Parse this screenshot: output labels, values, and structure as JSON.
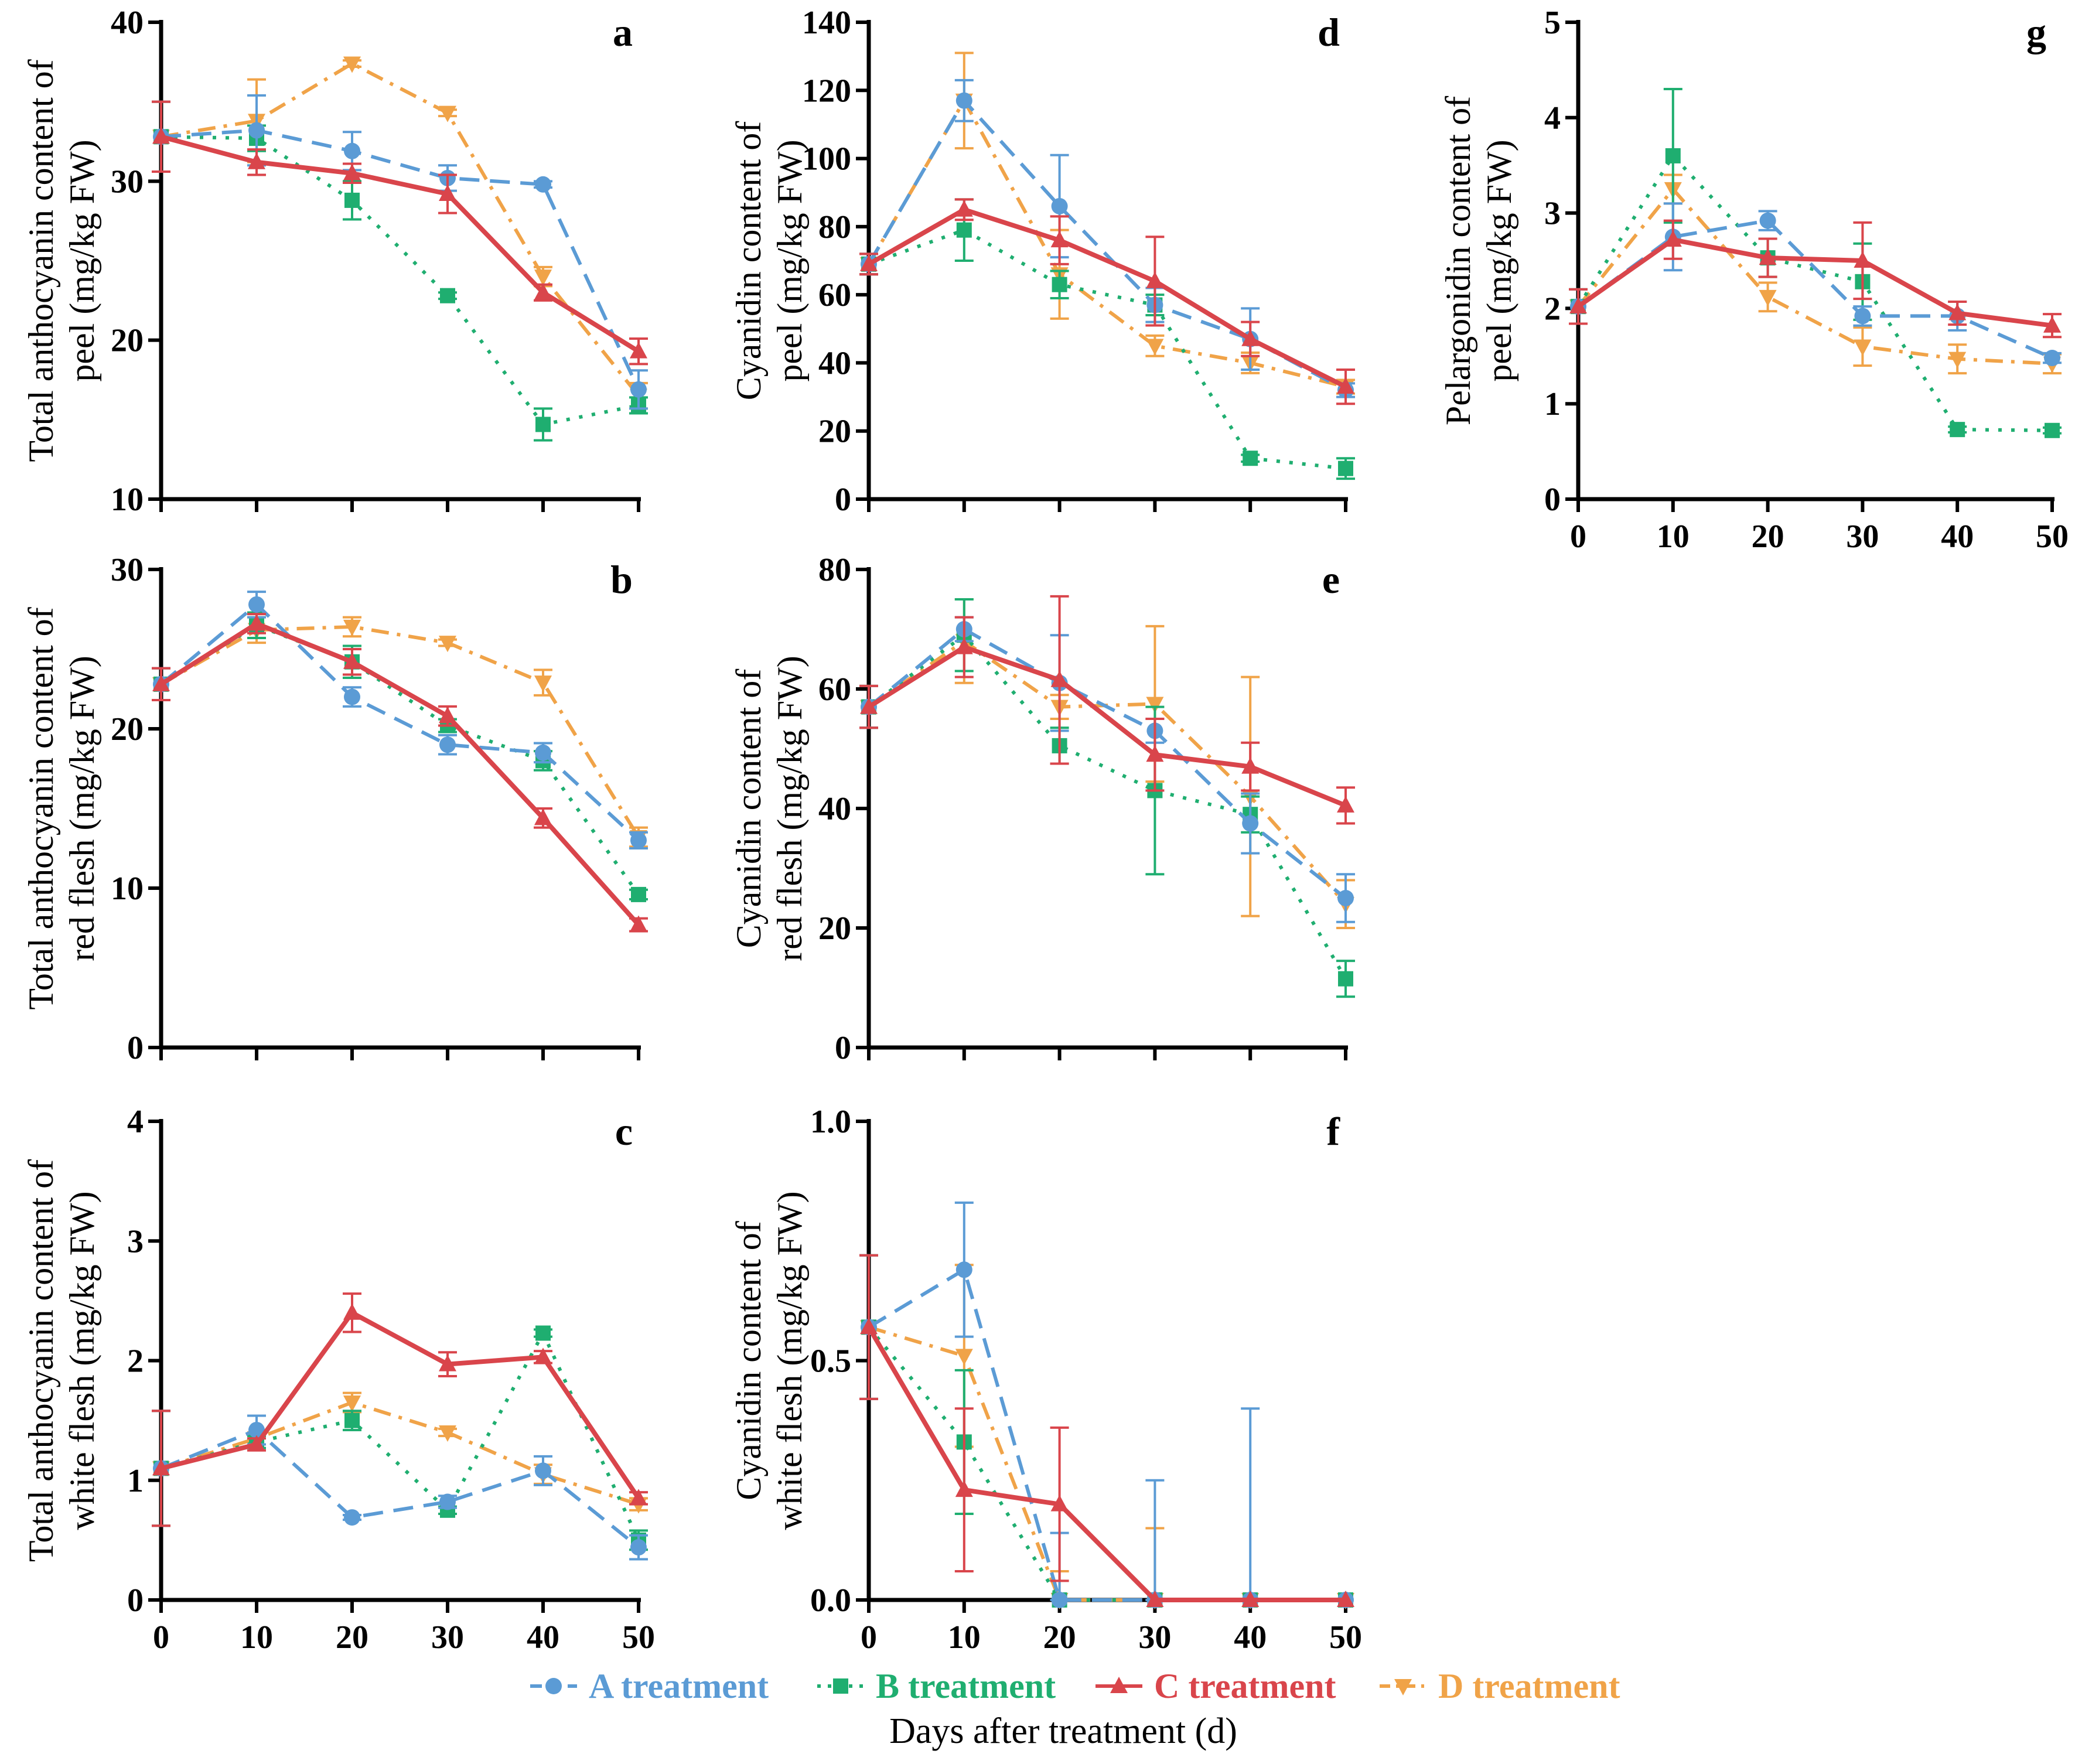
{
  "series_colors": {
    "A": "#5b9bd5",
    "B": "#1fae70",
    "C": "#d9454b",
    "D": "#f0a348"
  },
  "legend": [
    {
      "key": "A",
      "label": "A treatment",
      "marker": "circle",
      "dash": "dashed"
    },
    {
      "key": "B",
      "label": "B treatment",
      "marker": "square",
      "dash": "dotted"
    },
    {
      "key": "C",
      "label": "C treatment",
      "marker": "triangle-up",
      "dash": "solid"
    },
    {
      "key": "D",
      "label": "D treatment",
      "marker": "triangle-down",
      "dash": "dashdot"
    }
  ],
  "xaxis_title": "Days after treatment (d)",
  "chart_data": [
    {
      "type": "line",
      "panel": "a",
      "ylabel_lines": [
        "Total anthocyanin content of",
        "peel (mg/kg FW)"
      ],
      "x": [
        0,
        10,
        20,
        30,
        40,
        50
      ],
      "xticks": [
        "0",
        "10",
        "20",
        "30",
        "40",
        "50"
      ],
      "show_xticks": false,
      "ylim": [
        10,
        40
      ],
      "yticks": [
        10,
        20,
        30,
        40
      ],
      "ytick_labels": [
        "10",
        "20",
        "30",
        "40"
      ],
      "series": [
        {
          "name": "A treatment",
          "key": "A",
          "values": [
            32.8,
            33.2,
            31.9,
            30.2,
            29.8,
            16.9
          ],
          "errors": [
            2.2,
            2.2,
            1.2,
            0.8,
            0.2,
            1.2
          ]
        },
        {
          "name": "B treatment",
          "key": "B",
          "values": [
            32.8,
            32.7,
            28.8,
            22.8,
            14.7,
            15.9
          ],
          "errors": [
            2.2,
            0.8,
            1.2,
            0.2,
            1.0,
            0.5
          ]
        },
        {
          "name": "C treatment",
          "key": "C",
          "values": [
            32.8,
            31.2,
            30.5,
            29.2,
            23.0,
            19.3
          ],
          "errors": [
            2.2,
            0.8,
            0.6,
            1.2,
            0.5,
            0.8
          ]
        },
        {
          "name": "D treatment",
          "key": "D",
          "values": [
            32.8,
            33.8,
            37.4,
            34.3,
            24.0,
            16.5
          ],
          "errors": [
            2.2,
            2.6,
            0.2,
            0.2,
            0.6,
            0.8
          ]
        }
      ]
    },
    {
      "type": "line",
      "panel": "b",
      "ylabel_lines": [
        "Total anthocyanin content of",
        "red flesh (mg/kg FW)"
      ],
      "x": [
        0,
        10,
        20,
        30,
        40,
        50
      ],
      "xticks": [
        "0",
        "10",
        "20",
        "30",
        "40",
        "50"
      ],
      "show_xticks": false,
      "ylim": [
        0,
        30
      ],
      "yticks": [
        0,
        10,
        20,
        30
      ],
      "ytick_labels": [
        "0",
        "10",
        "20",
        "30"
      ],
      "series": [
        {
          "name": "A treatment",
          "key": "A",
          "values": [
            22.8,
            27.8,
            22.0,
            19.0,
            18.5,
            13.0
          ],
          "errors": [
            1.0,
            0.8,
            0.6,
            0.6,
            0.6,
            0.5
          ]
        },
        {
          "name": "B treatment",
          "key": "B",
          "values": [
            22.8,
            26.5,
            24.2,
            20.2,
            18.0,
            9.6
          ],
          "errors": [
            1.0,
            0.8,
            1.0,
            0.4,
            0.6,
            0.3
          ]
        },
        {
          "name": "C treatment",
          "key": "C",
          "values": [
            22.8,
            26.6,
            24.2,
            20.8,
            14.4,
            7.7
          ],
          "errors": [
            1.0,
            0.6,
            0.8,
            0.6,
            0.6,
            0.4
          ]
        },
        {
          "name": "D treatment",
          "key": "D",
          "values": [
            22.8,
            26.2,
            26.4,
            25.4,
            22.9,
            13.2
          ],
          "errors": [
            1.0,
            0.8,
            0.6,
            0.2,
            0.8,
            0.6
          ]
        }
      ]
    },
    {
      "type": "line",
      "panel": "c",
      "ylabel_lines": [
        "Total anthocyanin content of",
        "white flesh (mg/kg FW)"
      ],
      "x": [
        0,
        10,
        20,
        30,
        40,
        50
      ],
      "xticks": [
        "0",
        "10",
        "20",
        "30",
        "40",
        "50"
      ],
      "show_xticks": true,
      "ylim": [
        0,
        4
      ],
      "yticks": [
        0,
        1,
        2,
        3,
        4
      ],
      "ytick_labels": [
        "0",
        "1",
        "2",
        "3",
        "4"
      ],
      "series": [
        {
          "name": "A treatment",
          "key": "A",
          "values": [
            1.1,
            1.42,
            0.69,
            0.82,
            1.08,
            0.44
          ],
          "errors": [
            0.48,
            0.12,
            0.02,
            0.05,
            0.12,
            0.1
          ]
        },
        {
          "name": "B treatment",
          "key": "B",
          "values": [
            1.1,
            1.32,
            1.5,
            0.75,
            2.23,
            0.5
          ],
          "errors": [
            0.48,
            0.05,
            0.08,
            0.03,
            0.03,
            0.08
          ]
        },
        {
          "name": "C treatment",
          "key": "C",
          "values": [
            1.1,
            1.3,
            2.4,
            1.97,
            2.03,
            0.85
          ],
          "errors": [
            0.48,
            0.05,
            0.16,
            0.1,
            0.05,
            0.05
          ]
        },
        {
          "name": "D treatment",
          "key": "D",
          "values": [
            1.1,
            1.35,
            1.65,
            1.4,
            1.05,
            0.8
          ],
          "errors": [
            0.48,
            0.05,
            0.08,
            0.03,
            0.08,
            0.05
          ]
        }
      ]
    },
    {
      "type": "line",
      "panel": "d",
      "ylabel_lines": [
        "Cyanidin content of",
        "peel (mg/kg FW)"
      ],
      "x": [
        0,
        10,
        20,
        30,
        40,
        50
      ],
      "xticks": [
        "0",
        "10",
        "20",
        "30",
        "40",
        "50"
      ],
      "show_xticks": false,
      "ylim": [
        0,
        140
      ],
      "yticks": [
        0,
        20,
        40,
        60,
        80,
        100,
        120,
        140
      ],
      "ytick_labels": [
        "0",
        "20",
        "40",
        "60",
        "80",
        "100",
        "120",
        "140"
      ],
      "series": [
        {
          "name": "A treatment",
          "key": "A",
          "values": [
            69,
            117,
            86,
            57,
            47,
            32
          ],
          "errors": [
            3,
            6,
            15,
            5,
            9,
            2
          ]
        },
        {
          "name": "B treatment",
          "key": "B",
          "values": [
            69,
            79,
            63,
            57,
            12,
            9
          ],
          "errors": [
            3,
            9,
            4,
            3,
            1,
            3
          ]
        },
        {
          "name": "C treatment",
          "key": "C",
          "values": [
            69,
            85,
            76,
            64,
            47,
            33
          ],
          "errors": [
            3,
            3,
            7,
            13,
            5,
            5
          ]
        },
        {
          "name": "D treatment",
          "key": "D",
          "values": [
            69,
            117,
            66,
            45,
            40,
            33
          ],
          "errors": [
            3,
            14,
            13,
            3,
            3,
            2
          ]
        }
      ]
    },
    {
      "type": "line",
      "panel": "e",
      "ylabel_lines": [
        "Cyanidin content of",
        "red flesh (mg/kg FW)"
      ],
      "x": [
        0,
        10,
        20,
        30,
        40,
        50
      ],
      "xticks": [
        "0",
        "10",
        "20",
        "30",
        "40",
        "50"
      ],
      "show_xticks": false,
      "ylim": [
        0,
        80
      ],
      "yticks": [
        0,
        20,
        40,
        60,
        80
      ],
      "ytick_labels": [
        "0",
        "20",
        "40",
        "60",
        "80"
      ],
      "series": [
        {
          "name": "A treatment",
          "key": "A",
          "values": [
            57,
            70,
            61,
            53,
            37.5,
            25
          ],
          "errors": [
            3.5,
            2,
            8,
            2,
            5,
            4
          ]
        },
        {
          "name": "B treatment",
          "key": "B",
          "values": [
            57,
            69,
            50.5,
            43,
            39,
            11.5
          ],
          "errors": [
            3.5,
            6,
            3,
            14,
            3,
            3
          ]
        },
        {
          "name": "C treatment",
          "key": "C",
          "values": [
            57,
            67,
            61.5,
            49,
            47,
            40.5
          ],
          "errors": [
            3.5,
            5,
            14,
            6,
            4,
            3
          ]
        },
        {
          "name": "D treatment",
          "key": "D",
          "values": [
            57,
            68,
            57,
            57.5,
            42,
            24
          ],
          "errors": [
            3.5,
            7,
            2,
            13,
            20,
            4
          ]
        }
      ]
    },
    {
      "type": "line",
      "panel": "f",
      "ylabel_lines": [
        "Cyanidin content of",
        "white flesh (mg/kg FW)"
      ],
      "x": [
        0,
        10,
        20,
        30,
        40,
        50
      ],
      "xticks": [
        "0",
        "10",
        "20",
        "30",
        "40",
        "50"
      ],
      "show_xticks": true,
      "ylim": [
        0,
        1.0
      ],
      "yticks": [
        0,
        0.5,
        1.0
      ],
      "ytick_labels": [
        "0.0",
        "0.5",
        "1.0"
      ],
      "series": [
        {
          "name": "A treatment",
          "key": "A",
          "values": [
            0.57,
            0.69,
            0.0,
            0.0,
            0.0,
            0.0
          ],
          "errors": [
            0.15,
            0.14,
            0.14,
            0.25,
            0.4,
            0.0
          ]
        },
        {
          "name": "B treatment",
          "key": "B",
          "values": [
            0.57,
            0.33,
            0.0,
            0.0,
            0.0,
            0.0
          ],
          "errors": [
            0.15,
            0.15,
            0.0,
            0.0,
            0.0,
            0.0
          ]
        },
        {
          "name": "C treatment",
          "key": "C",
          "values": [
            0.57,
            0.23,
            0.2,
            0.0,
            0.0,
            0.0
          ],
          "errors": [
            0.15,
            0.17,
            0.16,
            0.0,
            0.0,
            0.0
          ]
        },
        {
          "name": "D treatment",
          "key": "D",
          "values": [
            0.57,
            0.51,
            0.0,
            0.0,
            0.0,
            0.0
          ],
          "errors": [
            0.15,
            0.19,
            0.06,
            0.15,
            0.0,
            0.0
          ]
        }
      ]
    },
    {
      "type": "line",
      "panel": "g",
      "ylabel_lines": [
        "Pelargonidin content of",
        "peel (mg/kg FW)"
      ],
      "x": [
        0,
        10,
        20,
        30,
        40,
        50
      ],
      "xticks": [
        "0",
        "10",
        "20",
        "30",
        "40",
        "50"
      ],
      "show_xticks": true,
      "ylim": [
        0,
        5
      ],
      "yticks": [
        0,
        1,
        2,
        3,
        4,
        5
      ],
      "ytick_labels": [
        "0",
        "1",
        "2",
        "3",
        "4",
        "5"
      ],
      "series": [
        {
          "name": "A treatment",
          "key": "A",
          "values": [
            2.02,
            2.75,
            2.92,
            1.92,
            1.92,
            1.48
          ],
          "errors": [
            0.18,
            0.35,
            0.1,
            0.1,
            0.15,
            0.05
          ]
        },
        {
          "name": "B treatment",
          "key": "B",
          "values": [
            2.02,
            3.6,
            2.53,
            2.28,
            0.73,
            0.72
          ],
          "errors": [
            0.18,
            0.7,
            0.2,
            0.4,
            0.03,
            0.03
          ]
        },
        {
          "name": "C treatment",
          "key": "C",
          "values": [
            2.02,
            2.72,
            2.53,
            2.5,
            1.95,
            1.82
          ],
          "errors": [
            0.18,
            0.2,
            0.2,
            0.4,
            0.12,
            0.12
          ]
        },
        {
          "name": "D treatment",
          "key": "D",
          "values": [
            2.02,
            3.25,
            2.12,
            1.6,
            1.47,
            1.42
          ],
          "errors": [
            0.18,
            0.15,
            0.15,
            0.2,
            0.15,
            0.1
          ]
        }
      ]
    }
  ]
}
